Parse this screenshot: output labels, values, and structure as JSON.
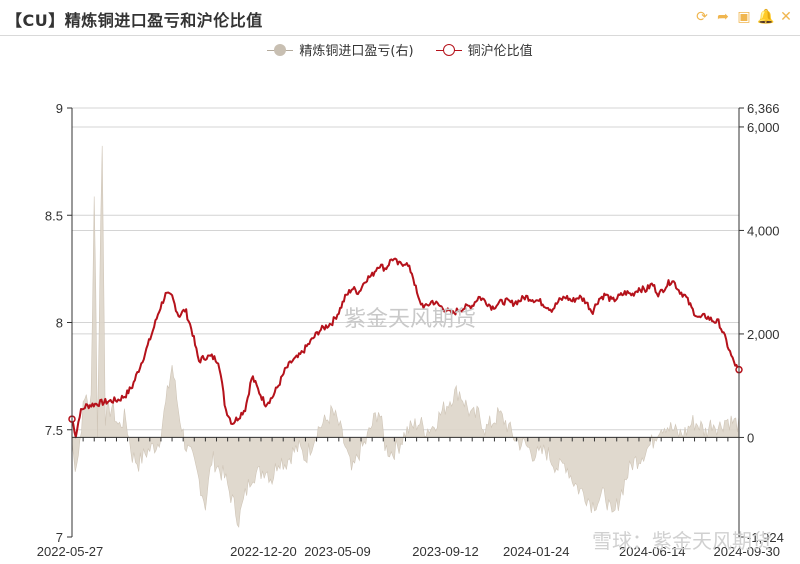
{
  "header": {
    "title": "【CU】精炼铜进口盈亏和沪伦比值",
    "tools": [
      {
        "name": "refresh-icon",
        "glyph": "⟳"
      },
      {
        "name": "share-icon",
        "glyph": "➦"
      },
      {
        "name": "save-icon",
        "glyph": "▣"
      },
      {
        "name": "bell-icon",
        "glyph": "🔔"
      },
      {
        "name": "close-icon",
        "glyph": "✕"
      }
    ]
  },
  "watermark": "紫金天风期货",
  "snow_watermark": "雪球：紫金天风期货",
  "chart_data": {
    "type": "line",
    "legend_position": "top-center",
    "series": [
      {
        "name": "精炼铜进口盈亏(右)",
        "type": "area",
        "axis": "right",
        "color": "#c8bfb2"
      },
      {
        "name": "铜沪伦比值",
        "type": "line",
        "axis": "left",
        "color": "#b5121b"
      }
    ],
    "x_tick_labels": [
      "2022-05-27",
      "2022-12-20",
      "2023-05-09",
      "2023-09-12",
      "2024-01-24",
      "2024-06-14",
      "2024-09-30"
    ],
    "x_tick_pos": [
      0.0,
      0.287,
      0.398,
      0.56,
      0.696,
      0.87,
      1.0
    ],
    "left_axis": {
      "min": 7,
      "max": 9,
      "ticks": [
        "7",
        "7.5",
        "8",
        "8.5",
        "9"
      ]
    },
    "right_axis": {
      "min": -1924,
      "max": 6366,
      "ticks": [
        "-1,924",
        "0",
        "2,000",
        "4,000",
        "6,000",
        "6,366"
      ]
    },
    "ratio_anchors": [
      [
        0.0,
        7.55
      ],
      [
        0.006,
        7.47
      ],
      [
        0.012,
        7.58
      ],
      [
        0.02,
        7.61
      ],
      [
        0.035,
        7.62
      ],
      [
        0.05,
        7.63
      ],
      [
        0.07,
        7.64
      ],
      [
        0.08,
        7.66
      ],
      [
        0.09,
        7.7
      ],
      [
        0.1,
        7.78
      ],
      [
        0.11,
        7.86
      ],
      [
        0.12,
        7.95
      ],
      [
        0.13,
        8.05
      ],
      [
        0.14,
        8.13
      ],
      [
        0.15,
        8.12
      ],
      [
        0.16,
        8.03
      ],
      [
        0.17,
        8.06
      ],
      [
        0.18,
        7.96
      ],
      [
        0.19,
        7.82
      ],
      [
        0.2,
        7.84
      ],
      [
        0.21,
        7.84
      ],
      [
        0.22,
        7.82
      ],
      [
        0.23,
        7.6
      ],
      [
        0.24,
        7.53
      ],
      [
        0.25,
        7.56
      ],
      [
        0.26,
        7.6
      ],
      [
        0.27,
        7.75
      ],
      [
        0.28,
        7.68
      ],
      [
        0.29,
        7.62
      ],
      [
        0.3,
        7.65
      ],
      [
        0.31,
        7.71
      ],
      [
        0.32,
        7.78
      ],
      [
        0.33,
        7.82
      ],
      [
        0.34,
        7.84
      ],
      [
        0.35,
        7.88
      ],
      [
        0.36,
        7.92
      ],
      [
        0.37,
        7.96
      ],
      [
        0.38,
        7.98
      ],
      [
        0.39,
        8.0
      ],
      [
        0.4,
        8.05
      ],
      [
        0.41,
        8.12
      ],
      [
        0.42,
        8.16
      ],
      [
        0.43,
        8.14
      ],
      [
        0.44,
        8.2
      ],
      [
        0.45,
        8.22
      ],
      [
        0.46,
        8.27
      ],
      [
        0.47,
        8.25
      ],
      [
        0.48,
        8.3
      ],
      [
        0.49,
        8.27
      ],
      [
        0.5,
        8.28
      ],
      [
        0.51,
        8.23
      ],
      [
        0.52,
        8.1
      ],
      [
        0.53,
        8.07
      ],
      [
        0.54,
        8.1
      ],
      [
        0.55,
        8.08
      ],
      [
        0.56,
        8.06
      ],
      [
        0.57,
        8.04
      ],
      [
        0.58,
        8.06
      ],
      [
        0.59,
        8.07
      ],
      [
        0.6,
        8.08
      ],
      [
        0.61,
        8.12
      ],
      [
        0.62,
        8.1
      ],
      [
        0.63,
        8.07
      ],
      [
        0.64,
        8.09
      ],
      [
        0.65,
        8.1
      ],
      [
        0.66,
        8.09
      ],
      [
        0.67,
        8.1
      ],
      [
        0.68,
        8.12
      ],
      [
        0.69,
        8.11
      ],
      [
        0.7,
        8.1
      ],
      [
        0.71,
        8.08
      ],
      [
        0.72,
        8.06
      ],
      [
        0.73,
        8.1
      ],
      [
        0.74,
        8.12
      ],
      [
        0.75,
        8.1
      ],
      [
        0.76,
        8.12
      ],
      [
        0.77,
        8.1
      ],
      [
        0.78,
        8.05
      ],
      [
        0.79,
        8.11
      ],
      [
        0.8,
        8.13
      ],
      [
        0.81,
        8.1
      ],
      [
        0.82,
        8.12
      ],
      [
        0.83,
        8.14
      ],
      [
        0.84,
        8.13
      ],
      [
        0.85,
        8.16
      ],
      [
        0.86,
        8.15
      ],
      [
        0.87,
        8.18
      ],
      [
        0.88,
        8.13
      ],
      [
        0.89,
        8.17
      ],
      [
        0.9,
        8.2
      ],
      [
        0.91,
        8.15
      ],
      [
        0.92,
        8.12
      ],
      [
        0.93,
        8.06
      ],
      [
        0.94,
        8.02
      ],
      [
        0.95,
        8.03
      ],
      [
        0.96,
        8.01
      ],
      [
        0.97,
        8.0
      ],
      [
        0.98,
        7.92
      ],
      [
        0.99,
        7.83
      ],
      [
        1.0,
        7.77
      ]
    ],
    "pnl_anchors": [
      [
        0.0,
        -100
      ],
      [
        0.004,
        -550
      ],
      [
        0.01,
        -300
      ],
      [
        0.016,
        500
      ],
      [
        0.022,
        900
      ],
      [
        0.028,
        300
      ],
      [
        0.034,
        5200
      ],
      [
        0.038,
        -150
      ],
      [
        0.045,
        5900
      ],
      [
        0.05,
        400
      ],
      [
        0.06,
        600
      ],
      [
        0.07,
        200
      ],
      [
        0.08,
        400
      ],
      [
        0.09,
        -350
      ],
      [
        0.1,
        -500
      ],
      [
        0.11,
        -300
      ],
      [
        0.12,
        -200
      ],
      [
        0.13,
        -100
      ],
      [
        0.14,
        600
      ],
      [
        0.15,
        1400
      ],
      [
        0.16,
        500
      ],
      [
        0.17,
        -150
      ],
      [
        0.18,
        -400
      ],
      [
        0.19,
        -800
      ],
      [
        0.2,
        -1300
      ],
      [
        0.21,
        -400
      ],
      [
        0.22,
        -600
      ],
      [
        0.23,
        -800
      ],
      [
        0.24,
        -1200
      ],
      [
        0.25,
        -1600
      ],
      [
        0.26,
        -1100
      ],
      [
        0.27,
        -700
      ],
      [
        0.28,
        -700
      ],
      [
        0.29,
        -600
      ],
      [
        0.3,
        -800
      ],
      [
        0.31,
        -400
      ],
      [
        0.32,
        -500
      ],
      [
        0.33,
        -300
      ],
      [
        0.34,
        -200
      ],
      [
        0.35,
        -400
      ],
      [
        0.36,
        -100
      ],
      [
        0.37,
        200
      ],
      [
        0.38,
        300
      ],
      [
        0.39,
        500
      ],
      [
        0.4,
        250
      ],
      [
        0.41,
        -200
      ],
      [
        0.42,
        -700
      ],
      [
        0.43,
        -300
      ],
      [
        0.44,
        -100
      ],
      [
        0.45,
        250
      ],
      [
        0.46,
        550
      ],
      [
        0.47,
        -200
      ],
      [
        0.48,
        -300
      ],
      [
        0.49,
        -150
      ],
      [
        0.5,
        100
      ],
      [
        0.51,
        200
      ],
      [
        0.52,
        300
      ],
      [
        0.53,
        150
      ],
      [
        0.54,
        200
      ],
      [
        0.55,
        400
      ],
      [
        0.56,
        600
      ],
      [
        0.57,
        800
      ],
      [
        0.58,
        900
      ],
      [
        0.59,
        650
      ],
      [
        0.6,
        400
      ],
      [
        0.61,
        450
      ],
      [
        0.62,
        150
      ],
      [
        0.63,
        300
      ],
      [
        0.64,
        450
      ],
      [
        0.65,
        300
      ],
      [
        0.66,
        50
      ],
      [
        0.67,
        -100
      ],
      [
        0.68,
        -150
      ],
      [
        0.69,
        -300
      ],
      [
        0.7,
        -350
      ],
      [
        0.71,
        -250
      ],
      [
        0.72,
        -450
      ],
      [
        0.73,
        -600
      ],
      [
        0.74,
        -500
      ],
      [
        0.75,
        -800
      ],
      [
        0.76,
        -1000
      ],
      [
        0.77,
        -1100
      ],
      [
        0.78,
        -1300
      ],
      [
        0.79,
        -1200
      ],
      [
        0.8,
        -1100
      ],
      [
        0.81,
        -1600
      ],
      [
        0.82,
        -1200
      ],
      [
        0.83,
        -800
      ],
      [
        0.84,
        -500
      ],
      [
        0.85,
        -400
      ],
      [
        0.86,
        -250
      ],
      [
        0.87,
        -100
      ],
      [
        0.88,
        200
      ],
      [
        0.89,
        250
      ],
      [
        0.9,
        150
      ],
      [
        0.91,
        50
      ],
      [
        0.92,
        100
      ],
      [
        0.93,
        300
      ],
      [
        0.94,
        250
      ],
      [
        0.95,
        100
      ],
      [
        0.96,
        300
      ],
      [
        0.97,
        200
      ],
      [
        0.98,
        350
      ],
      [
        0.99,
        300
      ],
      [
        1.0,
        250
      ]
    ]
  }
}
